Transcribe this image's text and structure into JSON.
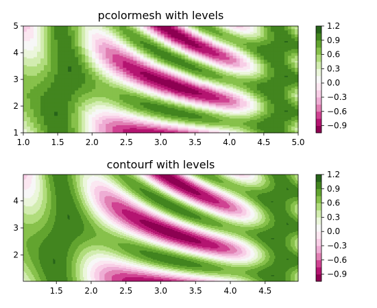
{
  "chart_data": [
    {
      "type": "heatmap",
      "title": "pcolormesh with levels",
      "z_function": "sin(x)^10 + cos(10 + y*x) * cos(x)",
      "x_range": [
        1.0,
        5.0
      ],
      "y_range": [
        1.0,
        5.0
      ],
      "grid_step": 0.05,
      "x_ticks": [
        "1.0",
        "1.5",
        "2.0",
        "2.5",
        "3.0",
        "3.5",
        "4.0",
        "4.5",
        "5.0"
      ],
      "y_ticks": [
        "1",
        "2",
        "3",
        "4",
        "5"
      ],
      "xlabel": "",
      "ylabel": "",
      "colormap": "PiYG",
      "levels": [
        -1.05,
        -0.9,
        -0.75,
        -0.6,
        -0.45,
        -0.3,
        -0.15,
        0.0,
        0.15,
        0.3,
        0.45,
        0.6,
        0.75,
        0.9,
        1.05,
        1.2
      ],
      "colorbar_ticks": [
        "1.2",
        "0.9",
        "0.6",
        "0.3",
        "0.0",
        "−0.3",
        "−0.6",
        "−0.9"
      ],
      "colorbar_tick_values": [
        1.2,
        0.9,
        0.6,
        0.3,
        0.0,
        -0.3,
        -0.6,
        -0.9
      ]
    },
    {
      "type": "heatmap",
      "title": "contourf with levels",
      "z_function": "sin(x)^10 + cos(10 + y*x) * cos(x)",
      "x_range": [
        1.025,
        4.975
      ],
      "y_range": [
        1.025,
        4.975
      ],
      "x_ticks": [
        "1.5",
        "2.0",
        "2.5",
        "3.0",
        "3.5",
        "4.0",
        "4.5"
      ],
      "y_ticks": [
        "2",
        "3",
        "4"
      ],
      "xlabel": "",
      "ylabel": "",
      "colormap": "PiYG",
      "levels": [
        -1.05,
        -0.9,
        -0.75,
        -0.6,
        -0.45,
        -0.3,
        -0.15,
        0.0,
        0.15,
        0.3,
        0.45,
        0.6,
        0.75,
        0.9,
        1.05,
        1.2
      ],
      "colorbar_ticks": [
        "1.2",
        "0.9",
        "0.6",
        "0.3",
        "0.0",
        "−0.3",
        "−0.6",
        "−0.9"
      ],
      "colorbar_tick_values": [
        1.2,
        0.9,
        0.6,
        0.3,
        0.0,
        -0.3,
        -0.6,
        -0.9
      ]
    }
  ]
}
